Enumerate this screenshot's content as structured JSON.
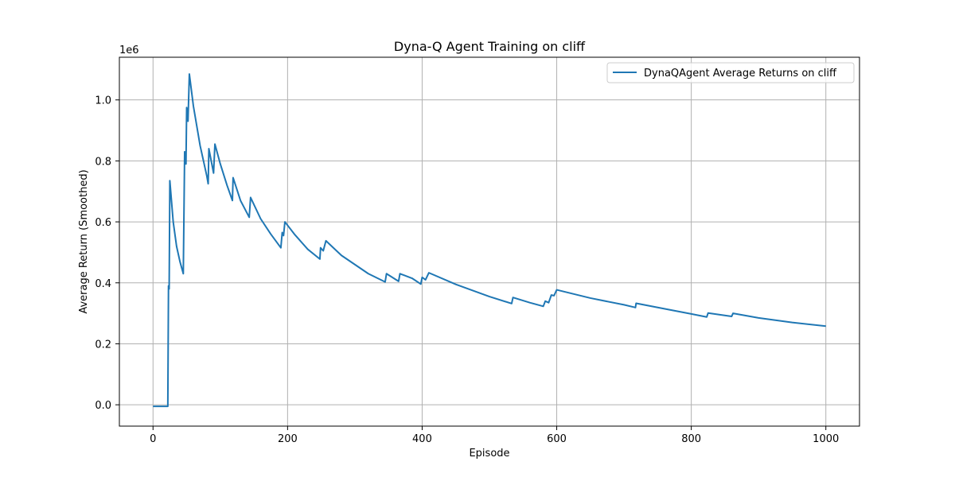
{
  "chart_data": {
    "type": "line",
    "title": "Dyna-Q Agent Training on cliff",
    "xlabel": "Episode",
    "ylabel": "Average Return (Smoothed)",
    "y_scale_label": "1e6",
    "xlim": [
      -50,
      1050
    ],
    "ylim": [
      -0.07,
      1.14
    ],
    "x_ticks": [
      0,
      200,
      400,
      600,
      800,
      1000
    ],
    "x_tick_labels": [
      "0",
      "200",
      "400",
      "600",
      "800",
      "1000"
    ],
    "y_ticks": [
      0.0,
      0.2,
      0.4,
      0.6,
      0.8,
      1.0
    ],
    "y_tick_labels": [
      "0.0",
      "0.2",
      "0.4",
      "0.6",
      "0.8",
      "1.0"
    ],
    "grid": true,
    "legend_position": "upper right",
    "series": [
      {
        "name": "DynaQAgent Average Returns on cliff",
        "color": "#1f77b4",
        "points": [
          [
            0,
            -0.005
          ],
          [
            22,
            -0.005
          ],
          [
            23,
            0.39
          ],
          [
            24,
            0.38
          ],
          [
            25,
            0.735
          ],
          [
            30,
            0.6
          ],
          [
            35,
            0.52
          ],
          [
            40,
            0.47
          ],
          [
            45,
            0.43
          ],
          [
            47,
            0.83
          ],
          [
            49,
            0.79
          ],
          [
            50,
            0.975
          ],
          [
            52,
            0.93
          ],
          [
            54,
            1.085
          ],
          [
            60,
            0.98
          ],
          [
            70,
            0.85
          ],
          [
            80,
            0.75
          ],
          [
            82,
            0.725
          ],
          [
            83,
            0.84
          ],
          [
            90,
            0.76
          ],
          [
            92,
            0.855
          ],
          [
            100,
            0.79
          ],
          [
            110,
            0.72
          ],
          [
            118,
            0.67
          ],
          [
            119,
            0.745
          ],
          [
            130,
            0.67
          ],
          [
            143,
            0.615
          ],
          [
            145,
            0.68
          ],
          [
            160,
            0.61
          ],
          [
            175,
            0.56
          ],
          [
            190,
            0.515
          ],
          [
            192,
            0.565
          ],
          [
            194,
            0.555
          ],
          [
            196,
            0.6
          ],
          [
            210,
            0.56
          ],
          [
            230,
            0.51
          ],
          [
            248,
            0.478
          ],
          [
            249,
            0.515
          ],
          [
            253,
            0.505
          ],
          [
            257,
            0.538
          ],
          [
            280,
            0.49
          ],
          [
            300,
            0.46
          ],
          [
            320,
            0.43
          ],
          [
            345,
            0.403
          ],
          [
            347,
            0.43
          ],
          [
            365,
            0.405
          ],
          [
            367,
            0.43
          ],
          [
            385,
            0.415
          ],
          [
            398,
            0.396
          ],
          [
            400,
            0.418
          ],
          [
            405,
            0.41
          ],
          [
            410,
            0.433
          ],
          [
            450,
            0.395
          ],
          [
            500,
            0.355
          ],
          [
            533,
            0.332
          ],
          [
            535,
            0.352
          ],
          [
            560,
            0.335
          ],
          [
            580,
            0.323
          ],
          [
            583,
            0.34
          ],
          [
            588,
            0.335
          ],
          [
            592,
            0.36
          ],
          [
            596,
            0.358
          ],
          [
            600,
            0.377
          ],
          [
            650,
            0.35
          ],
          [
            700,
            0.328
          ],
          [
            717,
            0.319
          ],
          [
            718,
            0.333
          ],
          [
            760,
            0.315
          ],
          [
            800,
            0.298
          ],
          [
            823,
            0.288
          ],
          [
            825,
            0.301
          ],
          [
            860,
            0.29
          ],
          [
            862,
            0.3
          ],
          [
            900,
            0.285
          ],
          [
            950,
            0.27
          ],
          [
            1000,
            0.258
          ]
        ]
      }
    ]
  }
}
